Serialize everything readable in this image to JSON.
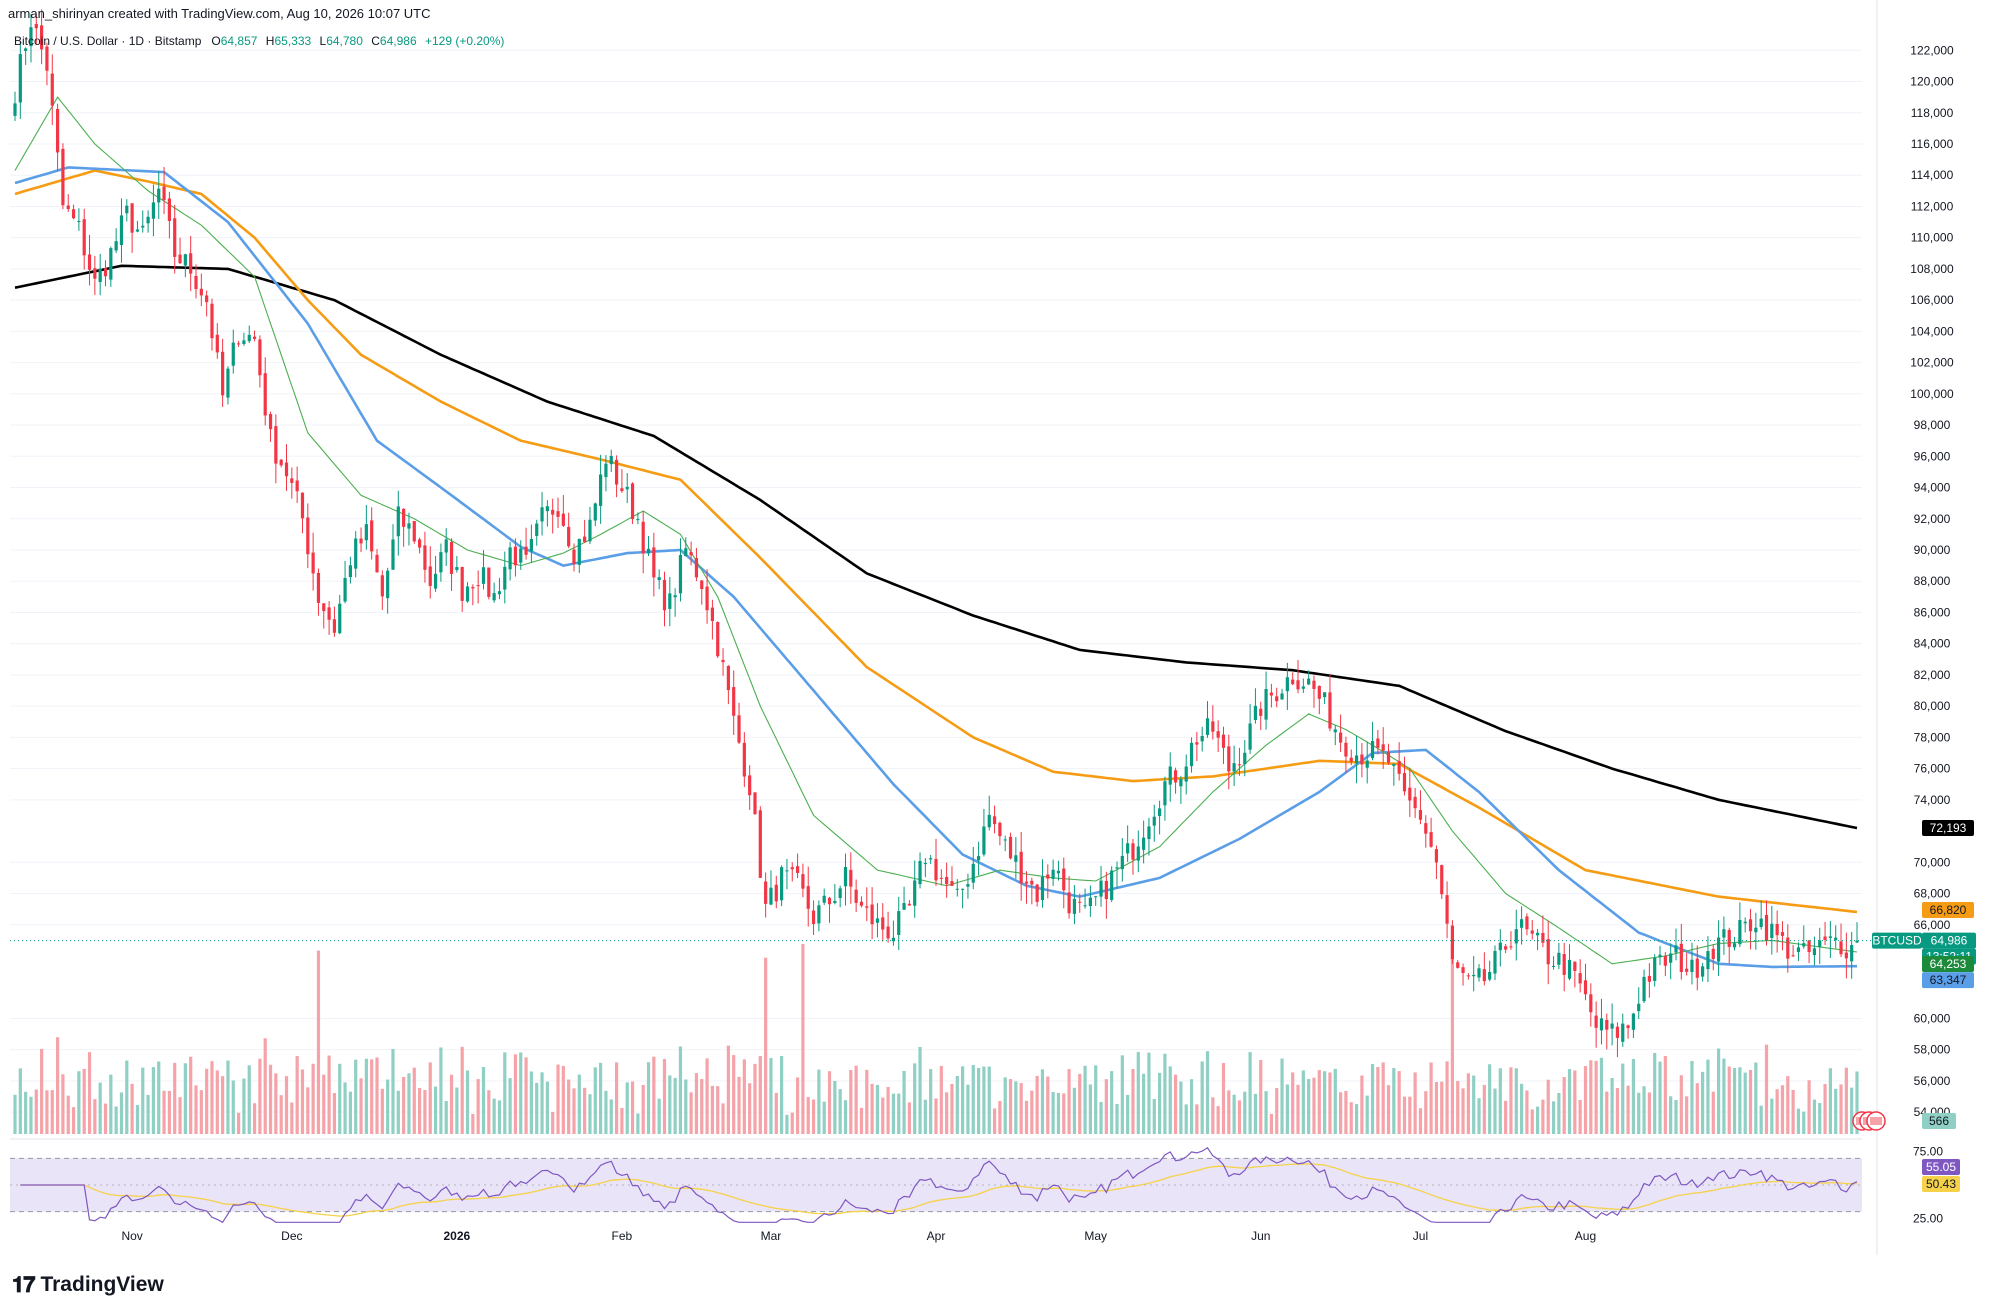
{
  "attribution": "arman_shirinyan created with TradingView.com, Aug 10, 2026 10:07 UTC",
  "symbol_header": {
    "name": "Bitcoin / U.S. Dollar · 1D · Bitstamp",
    "open_label": "O",
    "open": "64,857",
    "high_label": "H",
    "high": "65,333",
    "low_label": "L",
    "low": "64,780",
    "close_label": "C",
    "close": "64,986",
    "change": "+129 (+0.20%)"
  },
  "brand": {
    "name": "TradingView",
    "logo": "tradingview-logo"
  },
  "colors": {
    "up": "#089981",
    "down": "#f23645",
    "vol_up": "#8fcfc4",
    "vol_down": "#f5a3a9",
    "ma_black": "#000000",
    "ma_orange": "#f59c14",
    "ma_blue": "#5b9ee8",
    "ma_green": "#4caf50",
    "rsi_line": "#7e57c2",
    "rsi_ma": "#f5d24a",
    "rsi_band": "#e9e4f7"
  },
  "chart_data": {
    "type": "candlestick",
    "symbol": "BTCUSD",
    "exchange": "Bitstamp",
    "interval": "1D",
    "price_axis": {
      "range": [
        52600,
        123300
      ],
      "ticks": [
        "122,000",
        "120,000",
        "118,000",
        "116,000",
        "114,000",
        "112,000",
        "110,000",
        "108,000",
        "106,000",
        "104,000",
        "102,000",
        "100,000",
        "98,000",
        "96,000",
        "94,000",
        "92,000",
        "90,000",
        "88,000",
        "86,000",
        "84,000",
        "82,000",
        "80,000",
        "78,000",
        "76,000",
        "74,000",
        "70,000",
        "68,000",
        "66,000",
        "60,000",
        "58,000",
        "56,000",
        "54,000"
      ]
    },
    "time_axis": {
      "labels": [
        "Nov",
        "Dec",
        "2026",
        "Feb",
        "Mar",
        "Apr",
        "May",
        "Jun",
        "Jul",
        "Aug"
      ]
    },
    "price_keypoints": [
      [
        0,
        119500
      ],
      [
        3,
        124000
      ],
      [
        6,
        121000
      ],
      [
        9,
        112000
      ],
      [
        12,
        110500
      ],
      [
        15,
        107000
      ],
      [
        18,
        109000
      ],
      [
        21,
        111500
      ],
      [
        24,
        110000
      ],
      [
        27,
        113000
      ],
      [
        30,
        109000
      ],
      [
        33,
        108000
      ],
      [
        36,
        106000
      ],
      [
        39,
        99800
      ],
      [
        42,
        104000
      ],
      [
        45,
        103500
      ],
      [
        48,
        97000
      ],
      [
        51,
        95000
      ],
      [
        54,
        92000
      ],
      [
        57,
        87000
      ],
      [
        60,
        85000
      ],
      [
        63,
        89500
      ],
      [
        66,
        91000
      ],
      [
        69,
        87000
      ],
      [
        72,
        92000
      ],
      [
        75,
        91000
      ],
      [
        78,
        88000
      ],
      [
        81,
        90000
      ],
      [
        84,
        87500
      ],
      [
        87,
        88500
      ],
      [
        90,
        87000
      ],
      [
        93,
        90000
      ],
      [
        96,
        89000
      ],
      [
        99,
        92000
      ],
      [
        102,
        93000
      ],
      [
        105,
        90000
      ],
      [
        108,
        91500
      ],
      [
        111,
        96000
      ],
      [
        114,
        94000
      ],
      [
        117,
        92000
      ],
      [
        120,
        88000
      ],
      [
        123,
        86500
      ],
      [
        126,
        90000
      ],
      [
        129,
        88000
      ],
      [
        132,
        84000
      ],
      [
        135,
        79000
      ],
      [
        138,
        75000
      ],
      [
        141,
        67000
      ],
      [
        144,
        69000
      ],
      [
        147,
        68500
      ],
      [
        150,
        66500
      ],
      [
        153,
        67500
      ],
      [
        156,
        69000
      ],
      [
        159,
        67000
      ],
      [
        162,
        66000
      ],
      [
        165,
        65500
      ],
      [
        168,
        67000
      ],
      [
        171,
        70500
      ],
      [
        174,
        69000
      ],
      [
        177,
        67500
      ],
      [
        180,
        70000
      ],
      [
        183,
        73000
      ],
      [
        186,
        71000
      ],
      [
        189,
        69500
      ],
      [
        192,
        68000
      ],
      [
        195,
        70000
      ],
      [
        198,
        67500
      ],
      [
        201,
        66500
      ],
      [
        204,
        68000
      ],
      [
        207,
        69500
      ],
      [
        210,
        71000
      ],
      [
        213,
        73000
      ],
      [
        216,
        75000
      ],
      [
        219,
        76000
      ],
      [
        222,
        78000
      ],
      [
        225,
        78500
      ],
      [
        228,
        76000
      ],
      [
        231,
        77500
      ],
      [
        234,
        80000
      ],
      [
        237,
        81000
      ],
      [
        240,
        82000
      ],
      [
        243,
        81500
      ],
      [
        246,
        80000
      ],
      [
        249,
        78000
      ],
      [
        252,
        77000
      ],
      [
        255,
        77000
      ],
      [
        258,
        76500
      ],
      [
        261,
        74000
      ],
      [
        264,
        73000
      ],
      [
        267,
        70000
      ],
      [
        270,
        63500
      ],
      [
        273,
        62000
      ],
      [
        276,
        62500
      ],
      [
        279,
        64000
      ],
      [
        282,
        66000
      ],
      [
        285,
        65000
      ],
      [
        288,
        64000
      ],
      [
        291,
        63500
      ],
      [
        294,
        62000
      ],
      [
        297,
        59500
      ],
      [
        300,
        59000
      ],
      [
        303,
        59500
      ],
      [
        306,
        62500
      ],
      [
        309,
        63500
      ],
      [
        312,
        64000
      ],
      [
        315,
        63000
      ],
      [
        318,
        64500
      ],
      [
        321,
        65000
      ],
      [
        324,
        65500
      ],
      [
        327,
        66500
      ],
      [
        330,
        65500
      ],
      [
        333,
        64500
      ],
      [
        336,
        64000
      ],
      [
        339,
        64500
      ],
      [
        342,
        65000
      ],
      [
        345,
        64500
      ],
      [
        346,
        64986
      ]
    ],
    "moving_averages": [
      {
        "color": "#000000",
        "last": "72,193",
        "points": [
          [
            0,
            106800
          ],
          [
            20,
            108200
          ],
          [
            40,
            108000
          ],
          [
            60,
            106000
          ],
          [
            80,
            102500
          ],
          [
            100,
            99500
          ],
          [
            120,
            97300
          ],
          [
            140,
            93200
          ],
          [
            160,
            88500
          ],
          [
            180,
            85800
          ],
          [
            200,
            83600
          ],
          [
            220,
            82800
          ],
          [
            240,
            82300
          ],
          [
            260,
            81300
          ],
          [
            280,
            78400
          ],
          [
            300,
            76000
          ],
          [
            320,
            74000
          ],
          [
            346,
            72193
          ]
        ]
      },
      {
        "color": "#f59c14",
        "last": "66,820",
        "points": [
          [
            0,
            112800
          ],
          [
            15,
            114300
          ],
          [
            25,
            113600
          ],
          [
            35,
            112800
          ],
          [
            45,
            110000
          ],
          [
            55,
            106000
          ],
          [
            65,
            102500
          ],
          [
            80,
            99500
          ],
          [
            95,
            97000
          ],
          [
            110,
            95800
          ],
          [
            125,
            94500
          ],
          [
            140,
            89500
          ],
          [
            160,
            82500
          ],
          [
            180,
            78000
          ],
          [
            195,
            75800
          ],
          [
            210,
            75200
          ],
          [
            225,
            75500
          ],
          [
            245,
            76500
          ],
          [
            260,
            76300
          ],
          [
            275,
            73500
          ],
          [
            295,
            69500
          ],
          [
            320,
            67800
          ],
          [
            346,
            66820
          ]
        ]
      },
      {
        "color": "#5b9ee8",
        "last": "63,347",
        "points": [
          [
            0,
            113500
          ],
          [
            10,
            114500
          ],
          [
            28,
            114200
          ],
          [
            40,
            111000
          ],
          [
            55,
            104500
          ],
          [
            68,
            97000
          ],
          [
            82,
            93500
          ],
          [
            95,
            90200
          ],
          [
            103,
            89000
          ],
          [
            115,
            89800
          ],
          [
            125,
            90000
          ],
          [
            135,
            87000
          ],
          [
            150,
            81000
          ],
          [
            165,
            75000
          ],
          [
            178,
            70500
          ],
          [
            190,
            68500
          ],
          [
            200,
            67800
          ],
          [
            215,
            69000
          ],
          [
            230,
            71500
          ],
          [
            245,
            74500
          ],
          [
            255,
            77000
          ],
          [
            265,
            77200
          ],
          [
            275,
            74500
          ],
          [
            290,
            69500
          ],
          [
            305,
            65500
          ],
          [
            320,
            63500
          ],
          [
            330,
            63300
          ],
          [
            346,
            63347
          ]
        ]
      },
      {
        "color": "#4caf50",
        "last": "64,253",
        "points": [
          [
            0,
            114300
          ],
          [
            8,
            119000
          ],
          [
            15,
            116000
          ],
          [
            25,
            113000
          ],
          [
            35,
            110800
          ],
          [
            45,
            107500
          ],
          [
            55,
            97500
          ],
          [
            65,
            93500
          ],
          [
            75,
            92000
          ],
          [
            85,
            90000
          ],
          [
            95,
            89000
          ],
          [
            103,
            89800
          ],
          [
            110,
            91000
          ],
          [
            118,
            92500
          ],
          [
            125,
            91000
          ],
          [
            132,
            87000
          ],
          [
            140,
            80000
          ],
          [
            150,
            73000
          ],
          [
            162,
            69500
          ],
          [
            175,
            68500
          ],
          [
            185,
            69500
          ],
          [
            195,
            69000
          ],
          [
            203,
            68800
          ],
          [
            215,
            71000
          ],
          [
            225,
            74500
          ],
          [
            235,
            77500
          ],
          [
            243,
            79500
          ],
          [
            250,
            78500
          ],
          [
            255,
            77500
          ],
          [
            262,
            76000
          ],
          [
            270,
            72000
          ],
          [
            280,
            68000
          ],
          [
            290,
            65800
          ],
          [
            300,
            63500
          ],
          [
            310,
            64000
          ],
          [
            320,
            64800
          ],
          [
            330,
            65000
          ],
          [
            346,
            64253
          ]
        ]
      }
    ],
    "price_labels": [
      {
        "text": "72,193",
        "value": 72193,
        "bg": "#000000",
        "fg": "#ffffff"
      },
      {
        "text": "66,820",
        "value": 66820,
        "bg": "#f59c14",
        "fg": "#131722"
      },
      {
        "text": "BTCUSD",
        "value": 64986,
        "bg": "#089981",
        "fg": "#ffffff"
      },
      {
        "text": "64,986",
        "value": 64986,
        "bg": "#089981",
        "fg": "#ffffff"
      },
      {
        "text": "13:52:11",
        "value": 64986,
        "bg": "#089981",
        "fg": "#ffffff"
      },
      {
        "text": "64,253",
        "value": 64253,
        "bg": "#1b8a3a",
        "fg": "#ffffff"
      },
      {
        "text": "63,347",
        "value": 63347,
        "bg": "#5b9ee8",
        "fg": "#131722"
      }
    ],
    "volume": {
      "last": "566"
    },
    "rsi": {
      "ticks": [
        "75.00",
        "25.00"
      ],
      "range": [
        20,
        80
      ],
      "upper": 70,
      "lower": 30,
      "last_rsi": "55.05",
      "last_ma": "50.43"
    }
  }
}
